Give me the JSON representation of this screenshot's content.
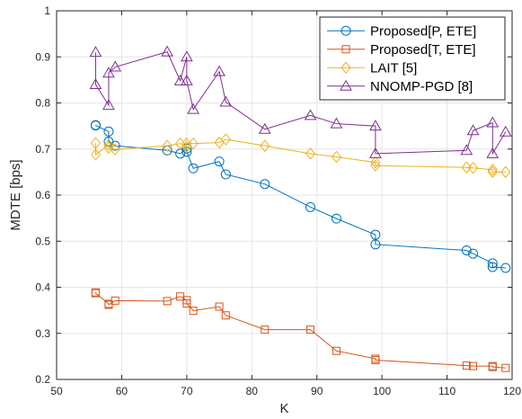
{
  "chart_data": {
    "type": "scatter",
    "title": "",
    "xlabel": "K",
    "ylabel": "MDTE [bps]",
    "xlim": [
      50,
      120
    ],
    "ylim": [
      0.2,
      1.0
    ],
    "xticks": [
      "50",
      "60",
      "70",
      "80",
      "90",
      "100",
      "110",
      "120"
    ],
    "yticks": [
      "0.2",
      "0.3",
      "0.4",
      "0.5",
      "0.6",
      "0.7",
      "0.8",
      "0.9",
      "1"
    ],
    "grid": true,
    "legend_position": "top-right",
    "series": [
      {
        "name": "Proposed[P, ETE]",
        "color": "#0072BD",
        "marker": "circle",
        "x": [
          56,
          56,
          58,
          58,
          59,
          67,
          69,
          70,
          70,
          71,
          75,
          76,
          82,
          89,
          93,
          99,
          99,
          113,
          114,
          117,
          117,
          119
        ],
        "y": [
          0.752,
          0.751,
          0.738,
          0.716,
          0.707,
          0.697,
          0.69,
          0.701,
          0.694,
          0.658,
          0.673,
          0.645,
          0.624,
          0.574,
          0.549,
          0.514,
          0.493,
          0.48,
          0.473,
          0.452,
          0.444,
          0.442
        ]
      },
      {
        "name": "Proposed[T, ETE]",
        "color": "#D95319",
        "marker": "square",
        "x": [
          56,
          56,
          58,
          58,
          59,
          67,
          69,
          70,
          70,
          71,
          75,
          76,
          82,
          89,
          93,
          99,
          99,
          113,
          114,
          117,
          117,
          119
        ],
        "y": [
          0.389,
          0.387,
          0.364,
          0.362,
          0.371,
          0.37,
          0.38,
          0.372,
          0.365,
          0.349,
          0.358,
          0.339,
          0.308,
          0.308,
          0.262,
          0.245,
          0.242,
          0.23,
          0.229,
          0.229,
          0.227,
          0.225
        ]
      },
      {
        "name": "LAIT [5]",
        "color": "#EDB120",
        "marker": "diamond",
        "x": [
          56,
          56,
          58,
          58,
          59,
          67,
          69,
          70,
          70,
          71,
          75,
          76,
          82,
          89,
          93,
          99,
          99,
          113,
          114,
          117,
          117,
          119
        ],
        "y": [
          0.713,
          0.688,
          0.709,
          0.703,
          0.699,
          0.707,
          0.712,
          0.705,
          0.712,
          0.712,
          0.714,
          0.721,
          0.707,
          0.69,
          0.683,
          0.671,
          0.664,
          0.66,
          0.659,
          0.655,
          0.65,
          0.65
        ]
      },
      {
        "name": "NNOMP-PGD [8]",
        "color": "#7E2F8E",
        "marker": "triangle",
        "x": [
          56,
          56,
          58,
          58,
          59,
          67,
          69,
          70,
          70,
          71,
          75,
          76,
          82,
          89,
          93,
          99,
          99,
          113,
          114,
          117,
          117,
          119
        ],
        "y": [
          0.91,
          0.84,
          0.795,
          0.865,
          0.878,
          0.911,
          0.848,
          0.9,
          0.848,
          0.786,
          0.868,
          0.802,
          0.743,
          0.773,
          0.755,
          0.75,
          0.69,
          0.697,
          0.74,
          0.757,
          0.69,
          0.737
        ]
      }
    ]
  }
}
